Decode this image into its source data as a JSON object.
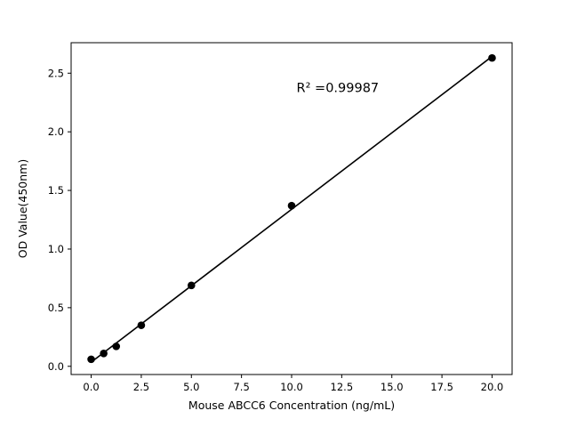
{
  "chart_data": {
    "type": "scatter",
    "x": [
      0,
      0.625,
      1.25,
      2.5,
      5,
      10,
      20
    ],
    "y": [
      0.06,
      0.11,
      0.17,
      0.35,
      0.69,
      1.37,
      2.63
    ],
    "title": "",
    "xlabel": "Mouse ABCC6 Concentration (ng/mL)",
    "ylabel": "OD Value(450nm)",
    "xlim": [
      -1,
      21
    ],
    "ylim": [
      -0.07,
      2.76
    ],
    "xticks": [
      0,
      2.5,
      5,
      7.5,
      10,
      12.5,
      15,
      17.5,
      20
    ],
    "yticks": [
      0,
      0.5,
      1,
      1.5,
      2,
      2.5
    ],
    "tick_decimals": 1,
    "annotation": {
      "text": "R² =0.99987",
      "x": 12.3,
      "y": 2.34
    },
    "fit_line": {
      "type": "linear"
    },
    "marker_color": "#000000",
    "line_color": "#000000",
    "background_color": "#ffffff",
    "grid": false,
    "legend": "none"
  }
}
